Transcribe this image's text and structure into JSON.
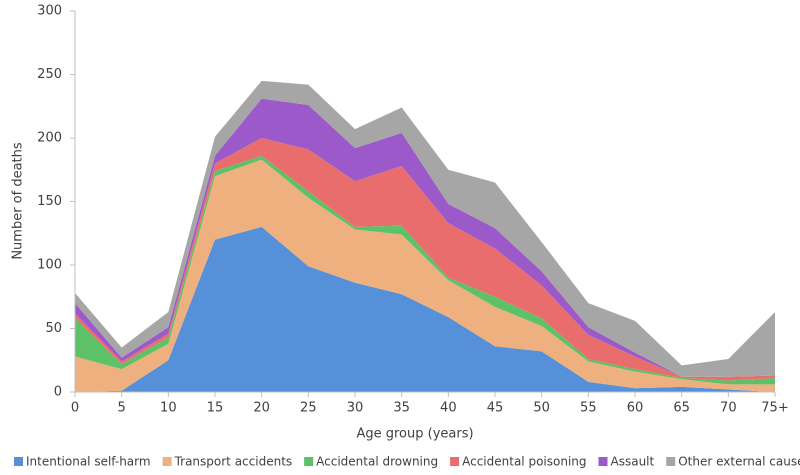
{
  "chart_data": {
    "type": "stacked-area",
    "x_label": "Age group (years)",
    "y_label": "Number of deaths",
    "categories": [
      "0",
      "5",
      "10",
      "15",
      "20",
      "25",
      "30",
      "35",
      "40",
      "45",
      "50",
      "55",
      "60",
      "65",
      "70",
      "75+"
    ],
    "series": [
      {
        "name": "Intentional self-harm",
        "color": "#5590d9",
        "values": [
          0,
          1,
          25,
          120,
          130,
          99,
          86,
          77,
          59,
          36,
          32,
          8,
          3,
          4,
          2,
          0
        ]
      },
      {
        "name": "Transport accidents",
        "color": "#eeb07f",
        "values": [
          28,
          17,
          13,
          50,
          53,
          54,
          42,
          47,
          29,
          31,
          20,
          16,
          13,
          6,
          4,
          6
        ]
      },
      {
        "name": "Accidental drowning",
        "color": "#5cc167",
        "values": [
          30,
          4,
          5,
          4,
          3,
          5,
          2,
          7,
          2,
          8,
          6,
          2,
          2,
          1,
          3,
          5
        ]
      },
      {
        "name": "Accidental poisoning",
        "color": "#e96d6d",
        "values": [
          4,
          2,
          3,
          6,
          14,
          33,
          36,
          47,
          43,
          38,
          26,
          19,
          10,
          1,
          3,
          2
        ]
      },
      {
        "name": "Assault",
        "color": "#9b59c9",
        "values": [
          8,
          3,
          5,
          6,
          31,
          35,
          26,
          26,
          15,
          16,
          11,
          6,
          3,
          0,
          0,
          0
        ]
      },
      {
        "name": "Other external causes",
        "color": "#a6a6a6",
        "values": [
          8,
          8,
          12,
          15,
          14,
          16,
          15,
          20,
          27,
          36,
          23,
          19,
          25,
          9,
          14,
          50
        ]
      }
    ],
    "ylim": [
      0,
      300
    ],
    "yticks": [
      0,
      50,
      100,
      150,
      200,
      250,
      300
    ],
    "grid": false,
    "legend": "bottom"
  }
}
